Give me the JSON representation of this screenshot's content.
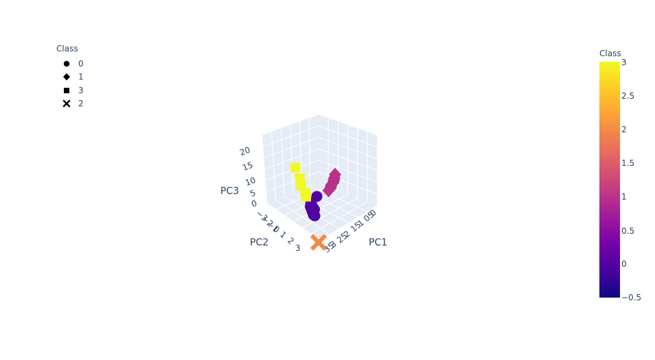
{
  "legend": {
    "title": "Class",
    "items": [
      {
        "label": "0",
        "symbol": "circle"
      },
      {
        "label": "1",
        "symbol": "diamond"
      },
      {
        "label": "3",
        "symbol": "square"
      },
      {
        "label": "2",
        "symbol": "x"
      }
    ]
  },
  "colorbar": {
    "title": "Class",
    "min": -0.5,
    "max": 3,
    "ticks": [
      "3",
      "2.5",
      "2",
      "1.5",
      "1",
      "0.5",
      "0",
      "−0.5"
    ],
    "tick_values": [
      3,
      2.5,
      2,
      1.5,
      1,
      0.5,
      0,
      -0.5
    ],
    "colorscale": [
      "#0d0887",
      "#46039f",
      "#7201a8",
      "#9c179e",
      "#bd3786",
      "#d8576b",
      "#ed7953",
      "#fb9f3a",
      "#fdca26",
      "#f0f921"
    ]
  },
  "chart_data": {
    "type": "scatter",
    "dimensions": 3,
    "axes": {
      "x": {
        "title": "PC1",
        "ticks": [
          "35",
          "3",
          "25",
          "2",
          "15",
          "1",
          "05",
          "0"
        ]
      },
      "y": {
        "title": "PC2",
        "ticks": [
          "3",
          "2",
          "1",
          "0",
          "−1",
          "−2",
          "−3"
        ]
      },
      "z": {
        "title": "PC3",
        "ticks": [
          "20",
          "15",
          "10",
          "5",
          "0"
        ]
      }
    },
    "series": [
      {
        "name": "0",
        "symbol": "circle",
        "color_value": 0,
        "points": [
          [
            0.4,
            0.8,
            4.6
          ],
          [
            0.5,
            0.9,
            4.4
          ],
          [
            0.6,
            1.0,
            4.2
          ],
          [
            0.7,
            1.0,
            4.0
          ],
          [
            0.8,
            1.1,
            3.8
          ],
          [
            0.9,
            1.1,
            3.6
          ],
          [
            1.0,
            1.2,
            3.4
          ],
          [
            1.1,
            1.2,
            3.2
          ],
          [
            1.2,
            1.3,
            3.0
          ],
          [
            1.3,
            1.3,
            2.8
          ],
          [
            0.6,
            0.9,
            4.3
          ],
          [
            0.9,
            1.0,
            3.7
          ],
          [
            1.1,
            1.2,
            3.3
          ],
          [
            0.2,
            0.3,
            5.6
          ]
        ]
      },
      {
        "name": "1",
        "symbol": "diamond",
        "color_value": 1,
        "points": [
          [
            -0.6,
            -1.4,
            8.2
          ],
          [
            -0.4,
            -1.2,
            8.0
          ],
          [
            -0.3,
            -1.1,
            7.8
          ],
          [
            -0.1,
            -0.9,
            7.6
          ],
          [
            0.0,
            -0.7,
            7.4
          ],
          [
            0.2,
            -0.5,
            7.2
          ],
          [
            0.3,
            -0.3,
            7.0
          ],
          [
            -0.2,
            -1.0,
            7.9
          ],
          [
            0.1,
            -0.6,
            7.3
          ]
        ]
      },
      {
        "name": "3",
        "symbol": "square",
        "color_value": 3,
        "points": [
          [
            -0.6,
            0.9,
            21.0
          ],
          [
            -0.4,
            0.8,
            15.5
          ],
          [
            -0.2,
            0.9,
            12.5
          ],
          [
            0.1,
            0.9,
            9.5
          ],
          [
            0.3,
            1.0,
            8.5
          ]
        ]
      },
      {
        "name": "2",
        "symbol": "x",
        "color_value": 2,
        "points": [
          [
            3.2,
            2.6,
            0.2
          ]
        ]
      }
    ]
  }
}
